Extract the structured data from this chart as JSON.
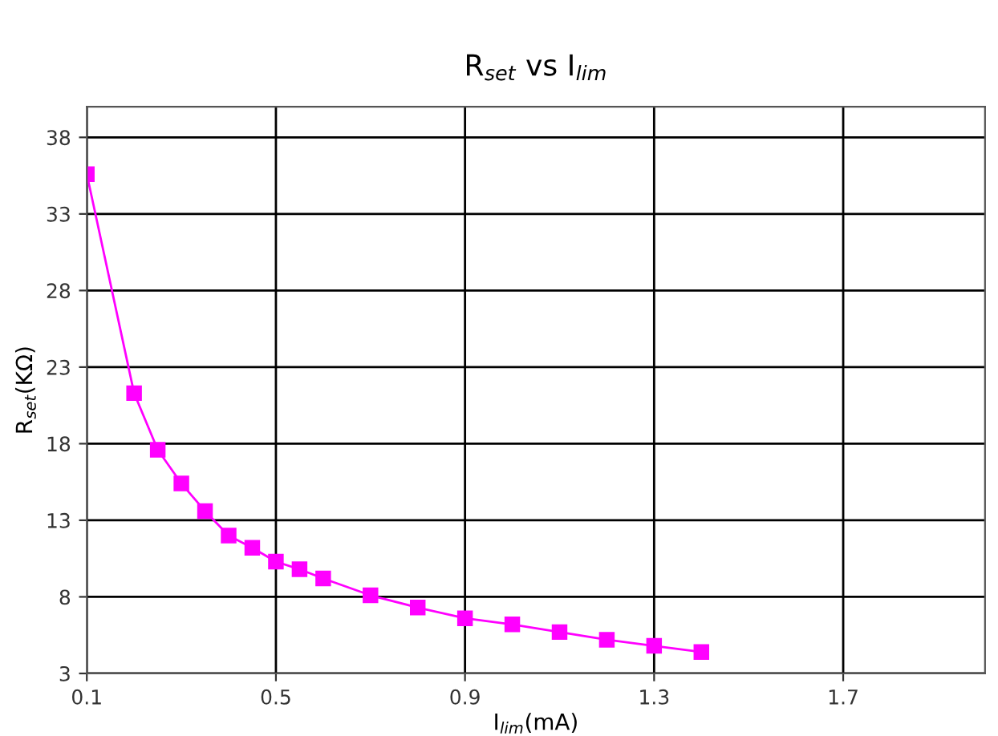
{
  "chart_data": {
    "type": "line",
    "title": "R$_{set}$ vs I$_{lim}$",
    "xlabel": "I$_{lim}$(mA)",
    "ylabel": "R$_{set}$(KΩ)",
    "x": [
      0.1,
      0.2,
      0.25,
      0.3,
      0.35,
      0.4,
      0.45,
      0.5,
      0.55,
      0.6,
      0.7,
      0.8,
      0.9,
      1.0,
      1.1,
      1.2,
      1.3,
      1.4
    ],
    "series": [
      {
        "color": "#ff00ff",
        "values": [
          35.6,
          21.3,
          17.6,
          15.4,
          13.6,
          12.0,
          11.2,
          10.3,
          9.8,
          9.2,
          8.1,
          7.3,
          6.6,
          6.2,
          5.7,
          5.2,
          4.8,
          4.4
        ]
      }
    ],
    "marker": "square",
    "line_style": "solid",
    "grid": true,
    "legend": false,
    "xlim": [
      0.1,
      2.0
    ],
    "xticks": [
      0.1,
      0.5,
      0.9,
      1.3,
      1.7
    ],
    "ylim": [
      3,
      40
    ],
    "yticks": [
      3,
      8,
      13,
      18,
      23,
      28,
      33,
      38
    ]
  }
}
